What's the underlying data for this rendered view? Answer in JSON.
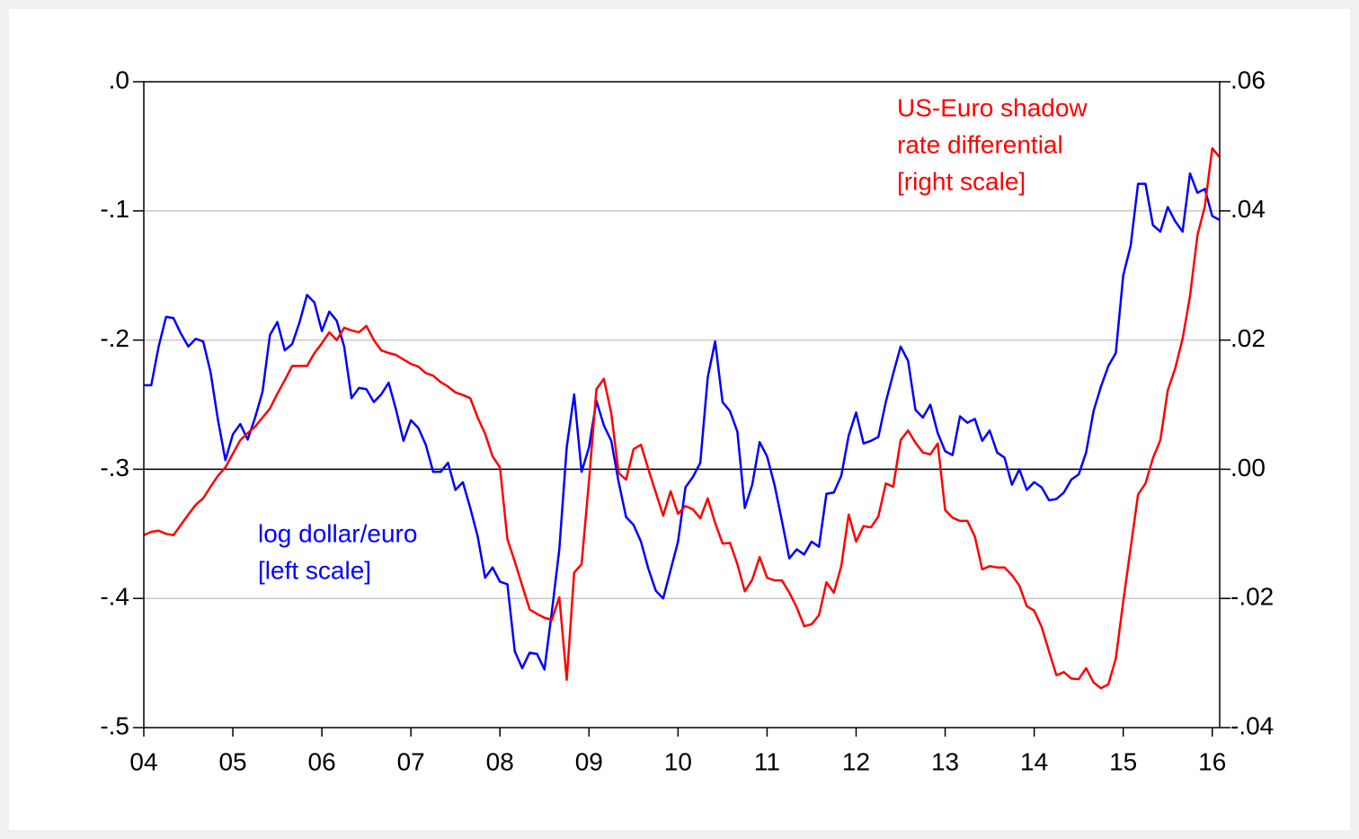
{
  "chart_data": {
    "type": "line",
    "categories": [
      "04",
      null,
      null,
      null,
      null,
      null,
      null,
      null,
      null,
      null,
      null,
      null,
      "05",
      null,
      null,
      null,
      null,
      null,
      null,
      null,
      null,
      null,
      null,
      null,
      "06",
      null,
      null,
      null,
      null,
      null,
      null,
      null,
      null,
      null,
      null,
      null,
      "07",
      null,
      null,
      null,
      null,
      null,
      null,
      null,
      null,
      null,
      null,
      null,
      "08",
      null,
      null,
      null,
      null,
      null,
      null,
      null,
      null,
      null,
      null,
      null,
      "09",
      null,
      null,
      null,
      null,
      null,
      null,
      null,
      null,
      null,
      null,
      null,
      "10",
      null,
      null,
      null,
      null,
      null,
      null,
      null,
      null,
      null,
      null,
      null,
      "11",
      null,
      null,
      null,
      null,
      null,
      null,
      null,
      null,
      null,
      null,
      null,
      "12",
      null,
      null,
      null,
      null,
      null,
      null,
      null,
      null,
      null,
      null,
      null,
      "13",
      null,
      null,
      null,
      null,
      null,
      null,
      null,
      null,
      null,
      null,
      null,
      "14",
      null,
      null,
      null,
      null,
      null,
      null,
      null,
      null,
      null,
      null,
      null,
      "15",
      null,
      null,
      null,
      null,
      null,
      null,
      null,
      null,
      null,
      null,
      null,
      "16",
      null
    ],
    "ylim": [
      -0.5,
      0
    ],
    "yticks": [
      {
        "value": 0,
        "label": ".0"
      },
      {
        "value": -0.1,
        "label": "-.1"
      },
      {
        "value": -0.2,
        "label": "-.2"
      },
      {
        "value": -0.3,
        "label": "-.3"
      },
      {
        "value": -0.4,
        "label": "-.4"
      },
      {
        "value": -0.5,
        "label": "-.5"
      }
    ],
    "y2lim": [
      -0.04,
      0.06
    ],
    "y2ticks": [
      {
        "value": 0.06,
        "label": ".06"
      },
      {
        "value": 0.04,
        "label": ".04"
      },
      {
        "value": 0.02,
        "label": ".02"
      },
      {
        "value": 0,
        "label": ".00"
      },
      {
        "value": -0.02,
        "label": "-.02"
      },
      {
        "value": -0.04,
        "label": "-.04"
      }
    ],
    "grid": true,
    "y2_zero_line": true,
    "series": [
      {
        "name": "log dollar/euro",
        "color": "#0000ff",
        "axis": "y",
        "values": [
          -0.235,
          -0.235,
          -0.205,
          -0.182,
          -0.183,
          -0.195,
          -0.205,
          -0.199,
          -0.201,
          -0.225,
          -0.262,
          -0.293,
          -0.273,
          -0.265,
          -0.277,
          -0.26,
          -0.24,
          -0.196,
          -0.186,
          -0.208,
          -0.203,
          -0.186,
          -0.165,
          -0.171,
          -0.193,
          -0.178,
          -0.185,
          -0.205,
          -0.245,
          -0.237,
          -0.238,
          -0.248,
          -0.242,
          -0.233,
          -0.254,
          -0.278,
          -0.262,
          -0.268,
          -0.281,
          -0.302,
          -0.302,
          -0.295,
          -0.316,
          -0.31,
          -0.33,
          -0.352,
          -0.384,
          -0.376,
          -0.387,
          -0.389,
          -0.441,
          -0.454,
          -0.442,
          -0.443,
          -0.455,
          -0.41,
          -0.362,
          -0.283,
          -0.242,
          -0.302,
          -0.283,
          -0.247,
          -0.266,
          -0.278,
          -0.31,
          -0.337,
          -0.343,
          -0.356,
          -0.377,
          -0.394,
          -0.4,
          -0.378,
          -0.356,
          -0.314,
          -0.306,
          -0.295,
          -0.229,
          -0.201,
          -0.248,
          -0.255,
          -0.271,
          -0.33,
          -0.312,
          -0.279,
          -0.29,
          -0.312,
          -0.34,
          -0.369,
          -0.362,
          -0.366,
          -0.356,
          -0.36,
          -0.319,
          -0.318,
          -0.305,
          -0.274,
          -0.256,
          -0.28,
          -0.278,
          -0.275,
          -0.248,
          -0.226,
          -0.205,
          -0.216,
          -0.254,
          -0.26,
          -0.25,
          -0.272,
          -0.286,
          -0.289,
          -0.259,
          -0.264,
          -0.261,
          -0.278,
          -0.27,
          -0.287,
          -0.291,
          -0.312,
          -0.3,
          -0.316,
          -0.31,
          -0.314,
          -0.324,
          -0.323,
          -0.318,
          -0.308,
          -0.304,
          -0.287,
          -0.255,
          -0.236,
          -0.22,
          -0.21,
          -0.15,
          -0.127,
          -0.079,
          -0.079,
          -0.111,
          -0.116,
          -0.097,
          -0.108,
          -0.116,
          -0.071,
          -0.086,
          -0.083,
          -0.104,
          -0.107
        ]
      },
      {
        "name": "US-Euro shadow rate differential",
        "color": "#ff0000",
        "axis": "y2",
        "values": [
          -0.0102,
          -0.0097,
          -0.0095,
          -0.01,
          -0.0102,
          -0.0086,
          -0.007,
          -0.0055,
          -0.0045,
          -0.0027,
          -0.001,
          0.0003,
          0.0024,
          0.0045,
          0.0056,
          0.0066,
          0.008,
          0.0094,
          0.0117,
          0.0138,
          0.016,
          0.016,
          0.016,
          0.018,
          0.0195,
          0.0212,
          0.02,
          0.0219,
          0.0215,
          0.0212,
          0.0222,
          0.02,
          0.0184,
          0.018,
          0.0177,
          0.017,
          0.0163,
          0.0159,
          0.0149,
          0.0145,
          0.0135,
          0.0128,
          0.0119,
          0.0115,
          0.011,
          0.008,
          0.0055,
          0.002,
          0.0003,
          -0.0108,
          -0.0143,
          -0.018,
          -0.0217,
          -0.0224,
          -0.023,
          -0.0233,
          -0.0198,
          -0.0326,
          -0.016,
          -0.0147,
          -0.0018,
          0.0124,
          0.014,
          0.0087,
          -0.0006,
          -0.0016,
          0.0031,
          0.0038,
          0,
          -0.0036,
          -0.0072,
          -0.0034,
          -0.0069,
          -0.0057,
          -0.0062,
          -0.0076,
          -0.0045,
          -0.0083,
          -0.0115,
          -0.0114,
          -0.0147,
          -0.0189,
          -0.0171,
          -0.0136,
          -0.0168,
          -0.0172,
          -0.0172,
          -0.0191,
          -0.0214,
          -0.0243,
          -0.024,
          -0.0226,
          -0.0175,
          -0.0191,
          -0.015,
          -0.007,
          -0.0112,
          -0.0088,
          -0.009,
          -0.0073,
          -0.0022,
          -0.0027,
          0.0045,
          0.006,
          0.0041,
          0.0026,
          0.0023,
          0.004,
          -0.0063,
          -0.0075,
          -0.008,
          -0.008,
          -0.0104,
          -0.0155,
          -0.015,
          -0.0152,
          -0.0152,
          -0.0164,
          -0.018,
          -0.0212,
          -0.0219,
          -0.0244,
          -0.0282,
          -0.0319,
          -0.0314,
          -0.0324,
          -0.0325,
          -0.0308,
          -0.033,
          -0.0339,
          -0.0333,
          -0.0293,
          -0.0205,
          -0.0122,
          -0.0039,
          -0.0022,
          0.0017,
          0.0045,
          0.0122,
          0.0156,
          0.0202,
          0.0268,
          0.0362,
          0.0407,
          0.0497,
          0.0483
        ]
      }
    ],
    "annotations": [
      {
        "color": "#ff0000",
        "lines": [
          "US-Euro shadow",
          "rate differential",
          "[right scale]"
        ]
      },
      {
        "color": "#0000ff",
        "lines": [
          "log dollar/euro",
          "[left scale]"
        ]
      }
    ]
  }
}
